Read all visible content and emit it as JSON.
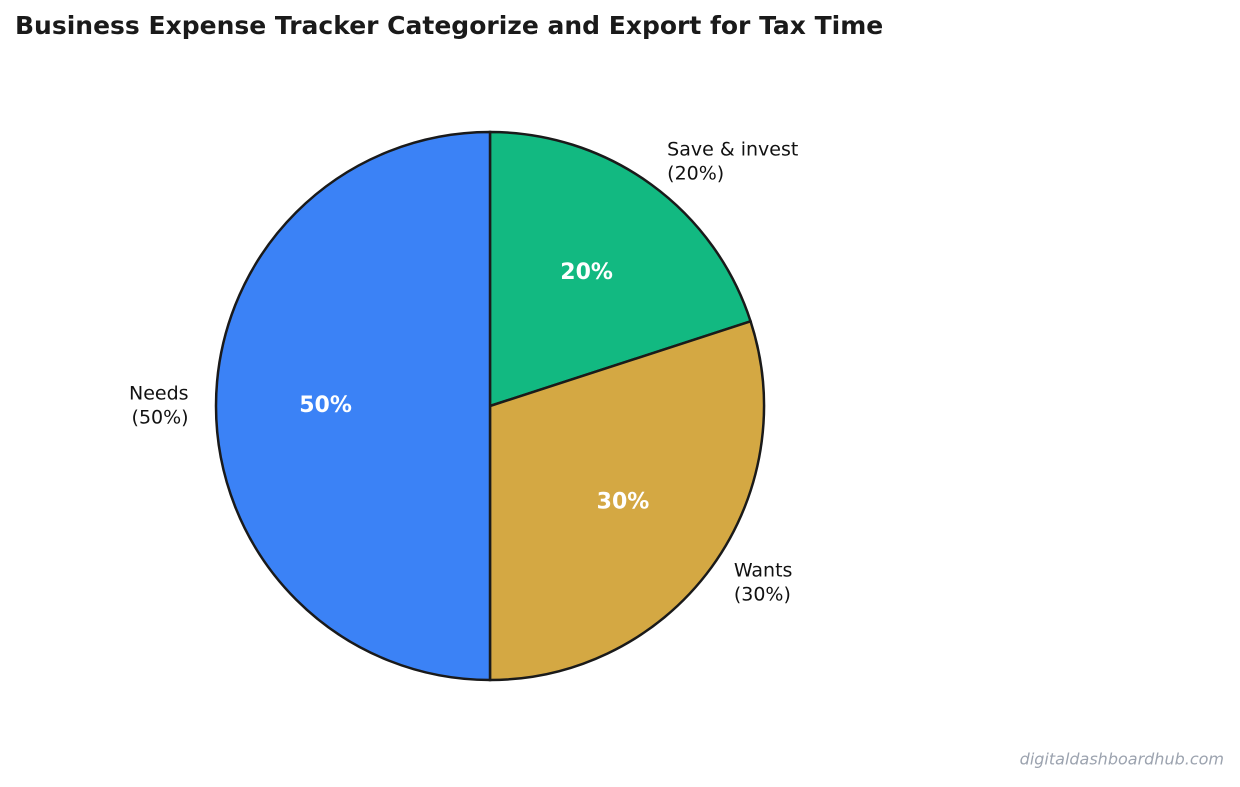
{
  "chart_data": {
    "type": "pie",
    "title": "Business Expense Tracker  Categorize and Export for Tax Time",
    "categories": [
      "Save & invest",
      "Wants",
      "Needs"
    ],
    "values": [
      20,
      30,
      50
    ],
    "value_labels": [
      "20%",
      "30%",
      "50%"
    ],
    "outer_value_labels": [
      "(20%)",
      "(30%)",
      "(50%)"
    ],
    "colors": [
      "#12b981",
      "#d4a843",
      "#3b82f6"
    ],
    "start_angle": 90,
    "direction": "clockwise"
  },
  "watermark": "digitaldashboardhub.com"
}
